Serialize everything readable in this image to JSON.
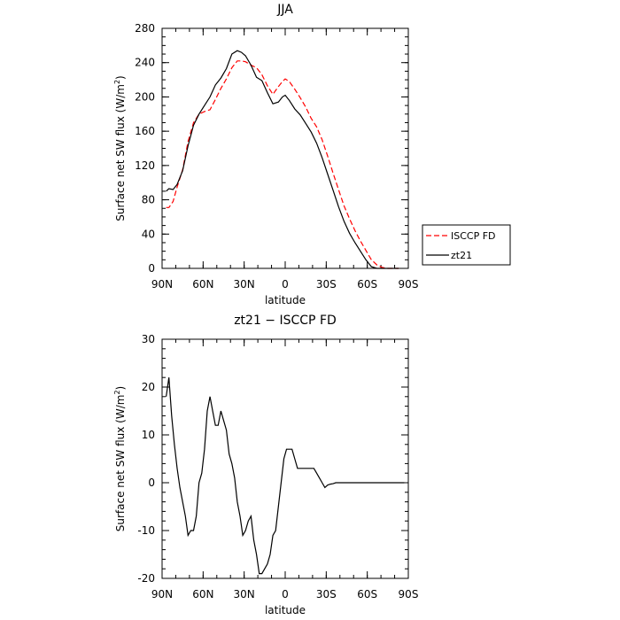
{
  "chart_data": [
    {
      "type": "line",
      "title": "JJA",
      "xlabel": "latitude",
      "ylabel": "Surface net SW flux (W/m²)",
      "ylabel_main": "Surface net SW flux (W/m",
      "ylabel_sup": "2",
      "ylabel_tail": ")",
      "xlim": [
        90,
        -90
      ],
      "ylim": [
        0,
        280
      ],
      "xticks": [
        {
          "value": 90,
          "label": "90N"
        },
        {
          "value": 60,
          "label": "60N"
        },
        {
          "value": 30,
          "label": "30N"
        },
        {
          "value": 0,
          "label": "0"
        },
        {
          "value": -30,
          "label": "30S"
        },
        {
          "value": -60,
          "label": "60S"
        },
        {
          "value": -90,
          "label": "90S"
        }
      ],
      "yticks": [
        0,
        40,
        80,
        120,
        160,
        200,
        240,
        280
      ],
      "grid": false,
      "legend": "right-outside",
      "series": [
        {
          "name": "ISCCP FD",
          "color": "#ff0000",
          "dash": "dashed",
          "x": [
            87,
            85,
            82,
            79,
            75,
            71,
            67,
            63,
            59,
            55,
            51,
            47,
            43,
            39,
            35,
            32,
            29,
            25,
            21,
            17,
            13,
            9,
            5,
            2,
            0,
            -3,
            -7,
            -11,
            -15,
            -19,
            -23,
            -27,
            -31,
            -35,
            -39,
            -43,
            -47,
            -51,
            -55,
            -59,
            -63,
            -67,
            -71,
            -75,
            -79,
            -83
          ],
          "y": [
            71,
            71,
            78,
            95,
            115,
            148,
            170,
            180,
            183,
            185,
            197,
            210,
            221,
            234,
            242,
            242,
            241,
            237,
            234,
            226,
            213,
            203,
            212,
            218,
            221,
            218,
            209,
            199,
            188,
            175,
            165,
            150,
            131,
            111,
            92,
            73,
            58,
            44,
            32,
            21,
            10,
            4,
            1,
            0,
            0,
            0
          ]
        },
        {
          "name": "zt21",
          "color": "#000000",
          "dash": "solid",
          "x": [
            87,
            85,
            82,
            79,
            75,
            71,
            67,
            63,
            59,
            55,
            51,
            47,
            43,
            39,
            35,
            32,
            29,
            25,
            21,
            17,
            13,
            9,
            5,
            2,
            0,
            -3,
            -7,
            -11,
            -15,
            -19,
            -23,
            -27,
            -31,
            -35,
            -39,
            -43,
            -47,
            -51,
            -55,
            -59,
            -63,
            -67,
            -71,
            -75,
            -79,
            -83
          ],
          "y": [
            90,
            93,
            92,
            98,
            114,
            143,
            167,
            180,
            190,
            200,
            214,
            222,
            233,
            250,
            254,
            252,
            248,
            237,
            223,
            219,
            205,
            192,
            194,
            200,
            202,
            196,
            186,
            179,
            169,
            159,
            146,
            129,
            110,
            91,
            72,
            55,
            41,
            30,
            20,
            10,
            2,
            0,
            0,
            0,
            0,
            0
          ]
        }
      ]
    },
    {
      "type": "line",
      "title": "zt21 − ISCCP FD",
      "xlabel": "latitude",
      "ylabel": "Surface net SW flux (W/m²)",
      "ylabel_main": "Surface net SW flux (W/m",
      "ylabel_sup": "2",
      "ylabel_tail": ")",
      "xlim": [
        90,
        -90
      ],
      "ylim": [
        -20,
        30
      ],
      "xticks": [
        {
          "value": 90,
          "label": "90N"
        },
        {
          "value": 60,
          "label": "60N"
        },
        {
          "value": 30,
          "label": "30N"
        },
        {
          "value": 0,
          "label": "0"
        },
        {
          "value": -30,
          "label": "30S"
        },
        {
          "value": -60,
          "label": "60S"
        },
        {
          "value": -90,
          "label": "90S"
        }
      ],
      "yticks": [
        -20,
        -10,
        0,
        10,
        20,
        30
      ],
      "grid": false,
      "series": [
        {
          "name": "",
          "color": "#000000",
          "dash": "solid",
          "x": [
            87,
            85,
            83,
            81,
            79,
            77,
            75,
            73,
            71,
            69,
            67,
            65,
            63,
            61,
            59,
            57,
            55,
            53,
            51,
            49,
            47,
            45,
            43,
            41,
            39,
            37,
            35,
            33,
            31,
            29,
            27,
            25,
            23,
            21,
            19,
            17,
            15,
            13,
            11,
            9,
            7,
            5,
            3,
            1,
            -1,
            -3,
            -5,
            -7,
            -9,
            -11,
            -13,
            -15,
            -17,
            -19,
            -21,
            -23,
            -25,
            -27,
            -29,
            -31,
            -33,
            -35,
            -37,
            -39,
            -41,
            -43,
            -45,
            -47,
            -49,
            -51,
            -53,
            -55,
            -57,
            -59,
            -61,
            -63,
            -65,
            -67,
            -69,
            -71,
            -73,
            -75,
            -77,
            -79,
            -81,
            -83,
            -85,
            -87
          ],
          "y": [
            18,
            22,
            14,
            8,
            3,
            -1,
            -4,
            -7,
            -11,
            -10,
            -10,
            -7,
            0,
            2,
            7,
            15,
            18,
            15,
            12,
            12,
            15,
            13,
            11,
            6,
            4,
            1,
            -4,
            -7,
            -11,
            -10,
            -8,
            -7,
            -12,
            -15,
            -19,
            -19,
            -18,
            -17,
            -15,
            -11,
            -10,
            -5,
            0,
            5,
            7,
            7,
            7,
            5,
            3,
            3,
            3,
            3,
            3,
            3,
            3,
            2,
            1,
            0,
            -1,
            -0.5,
            -0.3,
            -0.2,
            0,
            0,
            0,
            0,
            0,
            0,
            0,
            0,
            0,
            0,
            0,
            0,
            0,
            0,
            0,
            0,
            0,
            0,
            0,
            0,
            0,
            0,
            0,
            0,
            0,
            0
          ]
        }
      ]
    }
  ]
}
